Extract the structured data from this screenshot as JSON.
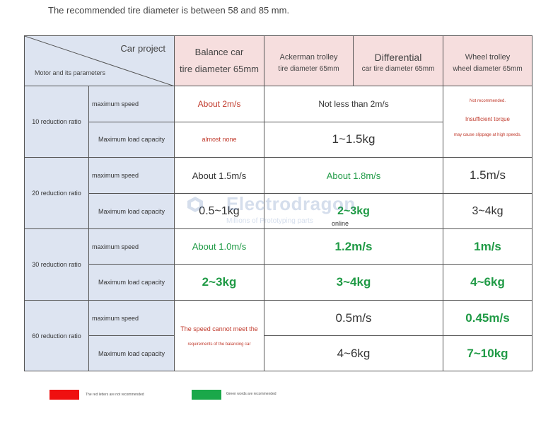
{
  "intro": "The recommended tire diameter is between 58 and 85 mm.",
  "corner": {
    "top": "Car project",
    "bottom": "Motor and its parameters"
  },
  "headers": {
    "balance": {
      "title": "Balance car",
      "sub": "tire diameter 65mm"
    },
    "ackerman": {
      "title": "Ackerman trolley",
      "sub": "tire diameter 65mm"
    },
    "differential": {
      "title": "Differential",
      "sub": "car tire diameter 65mm"
    },
    "wheel": {
      "title": "Wheel trolley",
      "sub": "wheel diameter 65mm"
    }
  },
  "rows": {
    "r10": {
      "label": "10 reduction ratio",
      "speed_label": "maximum speed",
      "load_label": "Maximum load capacity",
      "balance_speed": "About 2m/s",
      "acker_diff_speed": "Not less than 2m/s",
      "wheel_note": {
        "l1": "Not recommended.",
        "l2": "Insufficient torque",
        "l3": "may cause slippage at high speeds."
      },
      "balance_load": "almost none",
      "acker_diff_load": "1~1.5kg"
    },
    "r20": {
      "label": "20 reduction ratio",
      "speed_label": "maximum speed",
      "load_label": "Maximum load capacity",
      "balance_speed": "About 1.5m/s",
      "acker_diff_speed": "About 1.8m/s",
      "wheel_speed": "1.5m/s",
      "balance_load": "0.5~1kg",
      "acker_diff_load": "2~3kg",
      "wheel_load": "3~4kg"
    },
    "r30": {
      "label": "30 reduction ratio",
      "speed_label": "maximum speed",
      "load_label": "Maximum load capacity",
      "balance_speed": "About 1.0m/s",
      "acker_diff_speed": "1.2m/s",
      "wheel_speed": "1m/s",
      "balance_load": "2~3kg",
      "acker_diff_load": "3~4kg",
      "wheel_load": "4~6kg"
    },
    "r60": {
      "label": "60 reduction ratio",
      "speed_label": "maximum speed",
      "load_label": "Maximum load capacity",
      "balance_note": {
        "l1": "The speed cannot meet the",
        "l2": "requirements of the balancing car"
      },
      "acker_diff_speed": "0.5m/s",
      "wheel_speed": "0.45m/s",
      "acker_diff_load": "4~6kg",
      "wheel_load": "7~10kg"
    }
  },
  "watermark": {
    "brand": "Electrodragon",
    "tagline": "Millions of Prototyping parts",
    "online": "online"
  },
  "legend": {
    "red": {
      "color": "#ef1010",
      "text": "The red letters are not recommended"
    },
    "green": {
      "color": "#1aa84a",
      "text": "Green words are recommended"
    }
  },
  "colors": {
    "red_text": "#c0392b",
    "green_text": "#1f9a45",
    "header_pink": "#f6dede",
    "header_blue": "#dde4f1"
  }
}
